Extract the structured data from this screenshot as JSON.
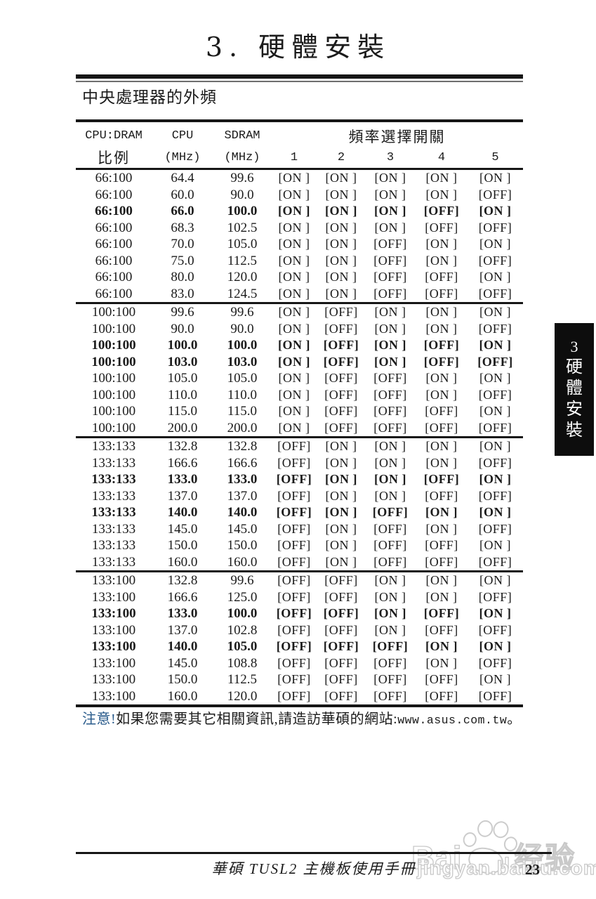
{
  "page": {
    "title": "3. 硬體安裝",
    "section_heading": "中央處理器的外頻",
    "footer_text": "華碩 TUSL2 主機板使用手冊",
    "page_number": "23"
  },
  "note": {
    "label": "注意!",
    "text": "如果您需要其它相關資訊,請造訪華碩的網站:",
    "url": "www.asus.com.tw",
    "suffix": "。",
    "label_color": "#27598a"
  },
  "chapter_tab": {
    "number": "3",
    "chars": [
      "硬",
      "體",
      "安",
      "裝"
    ],
    "background": "#0d0d0d",
    "text_color": "#ffffff"
  },
  "watermark": {
    "brand_part1": "Bai",
    "brand_part2": "du",
    "brand_suffix": "经验",
    "url": "jingyan.baidu.com",
    "paw_icon": "paw-icon",
    "color": "#c9c9c9"
  },
  "table": {
    "header": {
      "col1_line1": "CPU:DRAM",
      "col1_line2": "比例",
      "col2_line1": "CPU",
      "col2_line2": "(MHz)",
      "col3_line1": "SDRAM",
      "col3_line2": "(MHz)",
      "switch_group": "頻率選擇開關",
      "switch_numbers": [
        "1",
        "2",
        "3",
        "4",
        "5"
      ]
    },
    "on_label": "ON",
    "off_label": "OFF",
    "groups": [
      {
        "rows": [
          {
            "ratio": "66:100",
            "cpu": "64.4",
            "sdram": "99.6",
            "sw": [
              "ON",
              "ON",
              "ON",
              "ON",
              "ON"
            ],
            "bold": false
          },
          {
            "ratio": "66:100",
            "cpu": "60.0",
            "sdram": "90.0",
            "sw": [
              "ON",
              "ON",
              "ON",
              "ON",
              "OFF"
            ],
            "bold": false
          },
          {
            "ratio": "66:100",
            "cpu": "66.0",
            "sdram": "100.0",
            "sw": [
              "ON",
              "ON",
              "ON",
              "OFF",
              "ON"
            ],
            "bold": true
          },
          {
            "ratio": "66:100",
            "cpu": "68.3",
            "sdram": "102.5",
            "sw": [
              "ON",
              "ON",
              "ON",
              "OFF",
              "OFF"
            ],
            "bold": false
          },
          {
            "ratio": "66:100",
            "cpu": "70.0",
            "sdram": "105.0",
            "sw": [
              "ON",
              "ON",
              "OFF",
              "ON",
              "ON"
            ],
            "bold": false
          },
          {
            "ratio": "66:100",
            "cpu": "75.0",
            "sdram": "112.5",
            "sw": [
              "ON",
              "ON",
              "OFF",
              "ON",
              "OFF"
            ],
            "bold": false
          },
          {
            "ratio": "66:100",
            "cpu": "80.0",
            "sdram": "120.0",
            "sw": [
              "ON",
              "ON",
              "OFF",
              "OFF",
              "ON"
            ],
            "bold": false
          },
          {
            "ratio": "66:100",
            "cpu": "83.0",
            "sdram": "124.5",
            "sw": [
              "ON",
              "ON",
              "OFF",
              "OFF",
              "OFF"
            ],
            "bold": false
          }
        ]
      },
      {
        "rows": [
          {
            "ratio": "100:100",
            "cpu": "99.6",
            "sdram": "99.6",
            "sw": [
              "ON",
              "OFF",
              "ON",
              "ON",
              "ON"
            ],
            "bold": false
          },
          {
            "ratio": "100:100",
            "cpu": "90.0",
            "sdram": "90.0",
            "sw": [
              "ON",
              "OFF",
              "ON",
              "ON",
              "OFF"
            ],
            "bold": false
          },
          {
            "ratio": "100:100",
            "cpu": "100.0",
            "sdram": "100.0",
            "sw": [
              "ON",
              "OFF",
              "ON",
              "OFF",
              "ON"
            ],
            "bold": true
          },
          {
            "ratio": "100:100",
            "cpu": "103.0",
            "sdram": "103.0",
            "sw": [
              "ON",
              "OFF",
              "ON",
              "OFF",
              "OFF"
            ],
            "bold": true
          },
          {
            "ratio": "100:100",
            "cpu": "105.0",
            "sdram": "105.0",
            "sw": [
              "ON",
              "OFF",
              "OFF",
              "ON",
              "ON"
            ],
            "bold": false
          },
          {
            "ratio": "100:100",
            "cpu": "110.0",
            "sdram": "110.0",
            "sw": [
              "ON",
              "OFF",
              "OFF",
              "ON",
              "OFF"
            ],
            "bold": false
          },
          {
            "ratio": "100:100",
            "cpu": "115.0",
            "sdram": "115.0",
            "sw": [
              "ON",
              "OFF",
              "OFF",
              "OFF",
              "ON"
            ],
            "bold": false
          },
          {
            "ratio": "100:100",
            "cpu": "200.0",
            "sdram": "200.0",
            "sw": [
              "ON",
              "OFF",
              "OFF",
              "OFF",
              "OFF"
            ],
            "bold": false
          }
        ]
      },
      {
        "rows": [
          {
            "ratio": "133:133",
            "cpu": "132.8",
            "sdram": "132.8",
            "sw": [
              "OFF",
              "ON",
              "ON",
              "ON",
              "ON"
            ],
            "bold": false
          },
          {
            "ratio": "133:133",
            "cpu": "166.6",
            "sdram": "166.6",
            "sw": [
              "OFF",
              "ON",
              "ON",
              "ON",
              "OFF"
            ],
            "bold": false
          },
          {
            "ratio": "133:133",
            "cpu": "133.0",
            "sdram": "133.0",
            "sw": [
              "OFF",
              "ON",
              "ON",
              "OFF",
              "ON"
            ],
            "bold": true
          },
          {
            "ratio": "133:133",
            "cpu": "137.0",
            "sdram": "137.0",
            "sw": [
              "OFF",
              "ON",
              "ON",
              "OFF",
              "OFF"
            ],
            "bold": false
          },
          {
            "ratio": "133:133",
            "cpu": "140.0",
            "sdram": "140.0",
            "sw": [
              "OFF",
              "ON",
              "OFF",
              "ON",
              "ON"
            ],
            "bold": true
          },
          {
            "ratio": "133:133",
            "cpu": "145.0",
            "sdram": "145.0",
            "sw": [
              "OFF",
              "ON",
              "OFF",
              "ON",
              "OFF"
            ],
            "bold": false
          },
          {
            "ratio": "133:133",
            "cpu": "150.0",
            "sdram": "150.0",
            "sw": [
              "OFF",
              "ON",
              "OFF",
              "OFF",
              "ON"
            ],
            "bold": false
          },
          {
            "ratio": "133:133",
            "cpu": "160.0",
            "sdram": "160.0",
            "sw": [
              "OFF",
              "ON",
              "OFF",
              "OFF",
              "OFF"
            ],
            "bold": false
          }
        ]
      },
      {
        "rows": [
          {
            "ratio": "133:100",
            "cpu": "132.8",
            "sdram": "99.6",
            "sw": [
              "OFF",
              "OFF",
              "ON",
              "ON",
              "ON"
            ],
            "bold": false
          },
          {
            "ratio": "133:100",
            "cpu": "166.6",
            "sdram": "125.0",
            "sw": [
              "OFF",
              "OFF",
              "ON",
              "ON",
              "OFF"
            ],
            "bold": false
          },
          {
            "ratio": "133:100",
            "cpu": "133.0",
            "sdram": "100.0",
            "sw": [
              "OFF",
              "OFF",
              "ON",
              "OFF",
              "ON"
            ],
            "bold": true
          },
          {
            "ratio": "133:100",
            "cpu": "137.0",
            "sdram": "102.8",
            "sw": [
              "OFF",
              "OFF",
              "ON",
              "OFF",
              "OFF"
            ],
            "bold": false
          },
          {
            "ratio": "133:100",
            "cpu": "140.0",
            "sdram": "105.0",
            "sw": [
              "OFF",
              "OFF",
              "OFF",
              "ON",
              "ON"
            ],
            "bold": true
          },
          {
            "ratio": "133:100",
            "cpu": "145.0",
            "sdram": "108.8",
            "sw": [
              "OFF",
              "OFF",
              "OFF",
              "ON",
              "OFF"
            ],
            "bold": false
          },
          {
            "ratio": "133:100",
            "cpu": "150.0",
            "sdram": "112.5",
            "sw": [
              "OFF",
              "OFF",
              "OFF",
              "OFF",
              "ON"
            ],
            "bold": false
          },
          {
            "ratio": "133:100",
            "cpu": "160.0",
            "sdram": "120.0",
            "sw": [
              "OFF",
              "OFF",
              "OFF",
              "OFF",
              "OFF"
            ],
            "bold": false
          }
        ]
      }
    ]
  }
}
